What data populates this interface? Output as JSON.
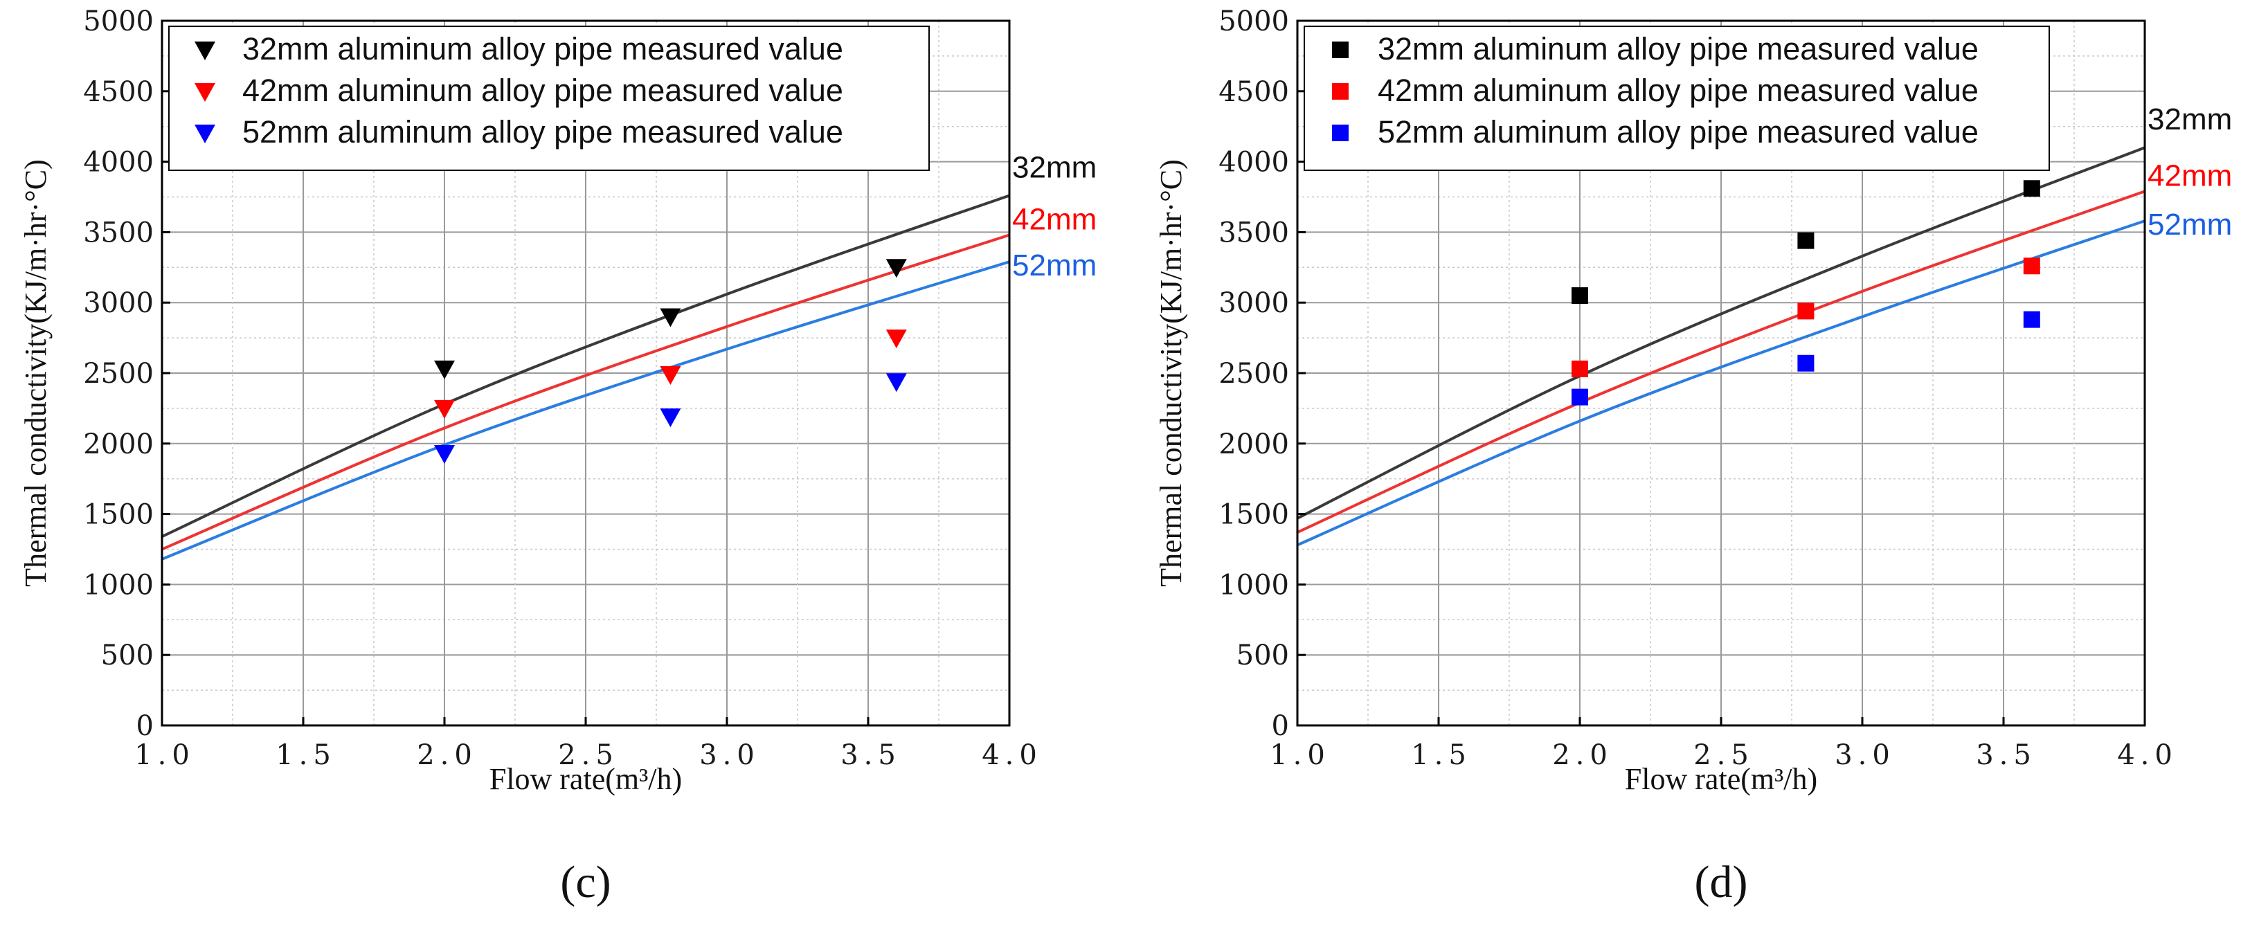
{
  "chart_data": [
    {
      "type": "line+scatter",
      "panel_label": "(c)",
      "xlabel": "Flow rate(m³/h)",
      "ylabel": "Thermal conductivity(KJ/m·hr·°C)",
      "xlim": [
        1.0,
        4.0
      ],
      "ylim": [
        0,
        5000
      ],
      "x_ticks": [
        "1.0",
        "1.5",
        "2.0",
        "2.5",
        "3.0",
        "3.5",
        "4.0"
      ],
      "y_ticks": [
        "0",
        "500",
        "1000",
        "1500",
        "2000",
        "2500",
        "3000",
        "3500",
        "4000",
        "4500",
        "5000"
      ],
      "grid": true,
      "marker": "triangle-down",
      "legend_position": "top-left",
      "lines": [
        {
          "name": "32mm",
          "label": "32mm",
          "color": "#3a3a3a",
          "x": [
            1.0,
            2.0,
            3.0,
            4.0
          ],
          "y": [
            1340,
            2280,
            3060,
            3760
          ]
        },
        {
          "name": "42mm",
          "label": "42mm",
          "color": "#ee3333",
          "x": [
            1.0,
            2.0,
            3.0,
            4.0
          ],
          "y": [
            1250,
            2110,
            2830,
            3480
          ]
        },
        {
          "name": "52mm",
          "label": "52mm",
          "color": "#2b7de0",
          "x": [
            1.0,
            2.0,
            3.0,
            4.0
          ],
          "y": [
            1180,
            1990,
            2670,
            3290
          ]
        }
      ],
      "series": [
        {
          "name": "32mm aluminum alloy pipe measured value",
          "color": "#000000",
          "x": [
            2.0,
            2.8,
            3.6
          ],
          "y": [
            2530,
            2900,
            3250
          ]
        },
        {
          "name": "42mm aluminum alloy pipe measured value",
          "color": "#ff0000",
          "x": [
            2.0,
            2.8,
            3.6
          ],
          "y": [
            2250,
            2490,
            2750
          ]
        },
        {
          "name": "52mm aluminum alloy pipe measured value",
          "color": "#0000ff",
          "x": [
            2.0,
            2.8,
            3.6
          ],
          "y": [
            1930,
            2190,
            2440
          ]
        }
      ]
    },
    {
      "type": "line+scatter",
      "panel_label": "(d)",
      "xlabel": "Flow rate(m³/h)",
      "ylabel": "Thermal conductivity(KJ/m·hr·°C)",
      "xlim": [
        1.0,
        4.0
      ],
      "ylim": [
        0,
        5000
      ],
      "x_ticks": [
        "1.0",
        "1.5",
        "2.0",
        "2.5",
        "3.0",
        "3.5",
        "4.0"
      ],
      "y_ticks": [
        "0",
        "500",
        "1000",
        "1500",
        "2000",
        "2500",
        "3000",
        "3500",
        "4000",
        "4500",
        "5000"
      ],
      "grid": true,
      "marker": "square",
      "legend_position": "top-left",
      "lines": [
        {
          "name": "32mm",
          "label": "32mm",
          "color": "#3a3a3a",
          "x": [
            1.0,
            2.0,
            3.0,
            4.0
          ],
          "y": [
            1470,
            2480,
            3330,
            4100
          ]
        },
        {
          "name": "42mm",
          "label": "42mm",
          "color": "#ee3333",
          "x": [
            1.0,
            2.0,
            3.0,
            4.0
          ],
          "y": [
            1370,
            2290,
            3080,
            3790
          ]
        },
        {
          "name": "52mm",
          "label": "52mm",
          "color": "#2b7de0",
          "x": [
            1.0,
            2.0,
            3.0,
            4.0
          ],
          "y": [
            1280,
            2160,
            2900,
            3580
          ]
        }
      ],
      "series": [
        {
          "name": "32mm aluminum alloy pipe measured value",
          "color": "#000000",
          "x": [
            2.0,
            2.8,
            3.6
          ],
          "y": [
            3050,
            3440,
            3810
          ]
        },
        {
          "name": "42mm aluminum alloy pipe measured value",
          "color": "#ff0000",
          "x": [
            2.0,
            2.8,
            3.6
          ],
          "y": [
            2530,
            2940,
            3260
          ]
        },
        {
          "name": "52mm aluminum alloy pipe measured value",
          "color": "#0000ff",
          "x": [
            2.0,
            2.8,
            3.6
          ],
          "y": [
            2330,
            2570,
            2880
          ]
        }
      ]
    }
  ]
}
